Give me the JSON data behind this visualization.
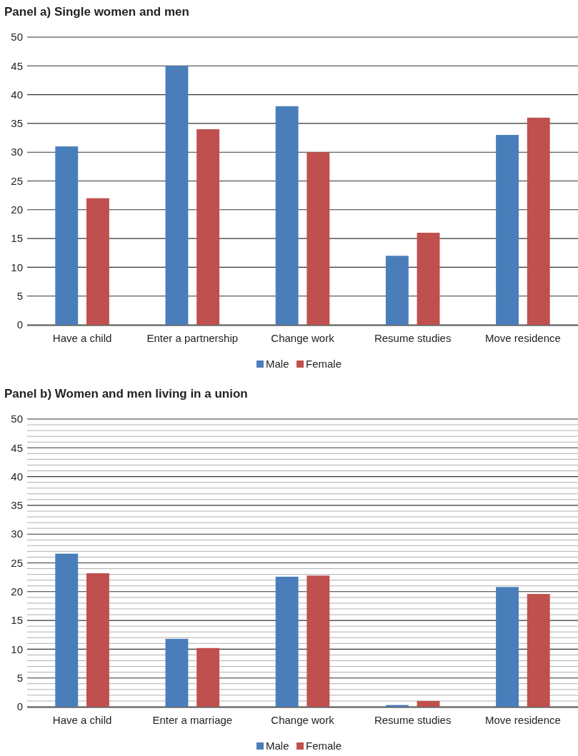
{
  "chart_data": [
    {
      "type": "bar",
      "title": "Panel a) Single women and men",
      "categories": [
        "Have a child",
        "Enter a partnership",
        "Change work",
        "Resume studies",
        "Move residence"
      ],
      "series": [
        {
          "name": "Male",
          "color": "#4a7ebb",
          "values": [
            31,
            45,
            38,
            12,
            33
          ]
        },
        {
          "name": "Female",
          "color": "#c0504d",
          "values": [
            22,
            34,
            30,
            16,
            36
          ]
        }
      ],
      "ylim": [
        0,
        50
      ],
      "yticks": [
        0,
        5,
        10,
        15,
        20,
        25,
        30,
        35,
        40,
        45,
        50
      ],
      "grid": "y",
      "legend": "bottom"
    },
    {
      "type": "bar",
      "title": "Panel b) Women and men living in a union",
      "categories": [
        "Have a child",
        "Enter a marriage",
        "Change work",
        "Resume studies",
        "Move residence"
      ],
      "series": [
        {
          "name": "Male",
          "color": "#4a7ebb",
          "values": [
            26.6,
            11.8,
            22.6,
            0.3,
            20.8
          ]
        },
        {
          "name": "Female",
          "color": "#c0504d",
          "values": [
            23.2,
            10.2,
            22.8,
            1.0,
            19.6
          ]
        }
      ],
      "ylim": [
        0,
        50
      ],
      "yticks": [
        0,
        {
          "value": 1,
          "label": null
        },
        {
          "value": 2,
          "label": null
        },
        {
          "value": 3,
          "label": null
        },
        {
          "value": 4,
          "label": null
        },
        5,
        {
          "value": 6,
          "label": null
        },
        {
          "value": 7,
          "label": null
        },
        {
          "value": 8,
          "label": null
        },
        {
          "value": 9,
          "label": null
        },
        10,
        {
          "value": 11,
          "label": null
        },
        {
          "value": 12,
          "label": null
        },
        {
          "value": 13,
          "label": null
        },
        {
          "value": 14,
          "label": null
        },
        15,
        {
          "value": 16,
          "label": null
        },
        {
          "value": 17,
          "label": null
        },
        {
          "value": 18,
          "label": null
        },
        {
          "value": 19,
          "label": null
        },
        20,
        {
          "value": 21,
          "label": null
        },
        {
          "value": 22,
          "label": null
        },
        {
          "value": 23,
          "label": null
        },
        {
          "value": 24,
          "label": null
        },
        25,
        {
          "value": 26,
          "label": null
        },
        {
          "value": 27,
          "label": null
        },
        {
          "value": 28,
          "label": null
        },
        {
          "value": 29,
          "label": null
        },
        30,
        {
          "value": 31,
          "label": null
        },
        {
          "value": 32,
          "label": null
        },
        {
          "value": 33,
          "label": null
        },
        {
          "value": 34,
          "label": null
        },
        35,
        {
          "value": 36,
          "label": null
        },
        {
          "value": 37,
          "label": null
        },
        {
          "value": 38,
          "label": null
        },
        {
          "value": 39,
          "label": null
        },
        40,
        {
          "value": 41,
          "label": null
        },
        {
          "value": 42,
          "label": null
        },
        {
          "value": 43,
          "label": null
        },
        {
          "value": 44,
          "label": null
        },
        45,
        {
          "value": 46,
          "label": null
        },
        {
          "value": 47,
          "label": null
        },
        {
          "value": 48,
          "label": null
        },
        {
          "value": 49,
          "label": null
        },
        50
      ],
      "grid": "y",
      "legend": "bottom"
    }
  ]
}
